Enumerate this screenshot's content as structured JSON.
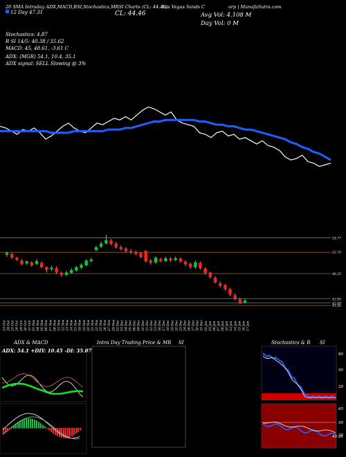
{
  "header": {
    "ticker_line": "(LVS) Las Vegas Sands Corp | MunafaSutra.com",
    "legend_line1": "20 SMA Intraday ADX,MACD,RSI,Stochastics,MRSI Charts (CL: 44.46)",
    "legend_line2": "12 Day  47.31",
    "close_label": "CL: 44.46",
    "avg_vol": "Avg Vol: 4.108  M",
    "day_vol": "Day Vol: 0  M",
    "company": "Las Vegas Sands C",
    "site": "orp | MunafaSutra.com"
  },
  "indicators": {
    "stoch": "Stochastics: 4.87",
    "rsi": "R                    SI 14/5: 40.38  /  35.62",
    "macd": "MACD: 45,  48.61,  -3.61 C",
    "adx": "ADX:                      (MGR) 54.1,  10.4,  35.1",
    "adx_signal": "ADX  signal: SELL  Slowing @ 3%"
  },
  "price_levels": [
    "55.77",
    "52.75",
    "48.25",
    "42.95",
    "42.09",
    "41.56"
  ],
  "dates": [
    "23 Oct",
    "24 Oct",
    "25 Oct",
    "28 Oct",
    "29 Oct",
    "30 Oct",
    "31 Oct",
    "01 Nov",
    "04 Nov",
    "05 Nov",
    "06 Nov",
    "07 Nov",
    "08 Nov",
    "11 Nov",
    "12 Nov",
    "13 Nov",
    "14 Nov",
    "15 Nov",
    "18 Nov",
    "19 Nov",
    "20 Nov",
    "21 Nov",
    "22 Nov",
    "25 Nov",
    "26 Nov",
    "27 Nov",
    "29 Nov",
    "02 Dec",
    "03 Dec",
    "04 Dec",
    "05 Dec",
    "06 Dec",
    "09 Dec",
    "10 Dec",
    "11 Dec",
    "12 Dec",
    "13 Dec",
    "16 Dec",
    "17 Dec",
    "18 Dec",
    "19 Dec",
    "20 Dec",
    "23 Dec",
    "24 Dec",
    "26 Dec",
    "27 Dec",
    "30 Dec",
    "31 Dec",
    "02 Jan",
    "03 Jan",
    "06 Jan",
    "07 Jan",
    "08 Jan",
    "10 Jan",
    "13 Jan",
    "14 Jan",
    "15 Jan",
    "16 Jan",
    "17 Jan"
  ],
  "panels": {
    "adx_title": "ADX  & MACD",
    "adx_values": "ADX: 54.1  +DIY: 10.45  -DI: 35.07",
    "intraday_title": "Intra  Day Trading Price  & MR",
    "intraday_si": "SI",
    "stoch_title": "Stochastics & R",
    "stoch_si": "SI",
    "stoch_levels": [
      "80",
      "50",
      "20"
    ],
    "rsi_levels": [
      "65",
      "50",
      "35"
    ],
    "rsi_value": "40.38"
  },
  "colors": {
    "up": "#00cc33",
    "down": "#ff2020",
    "sma": "#1f5fff",
    "grid": "#b36a1a"
  },
  "chart_data": [
    {
      "type": "line",
      "title": "Price vs 20 SMA (top strip)",
      "series": [
        {
          "name": "price",
          "values": [
            56,
            55,
            53,
            51,
            54,
            53,
            55,
            52,
            48,
            50,
            53,
            56,
            58,
            55,
            53,
            52,
            55,
            58,
            57,
            59,
            61,
            60,
            62,
            60,
            63,
            66,
            68,
            67,
            65,
            63,
            65,
            60,
            58,
            57,
            56,
            52,
            51,
            49,
            52,
            53,
            50,
            51,
            48,
            49,
            47,
            45,
            47,
            44,
            43,
            41,
            37,
            35,
            36,
            38,
            34,
            33,
            31,
            32,
            33
          ]
        },
        {
          "name": "20 SMA",
          "values": [
            53,
            53,
            53,
            53,
            53,
            53,
            53,
            53,
            53,
            52,
            52,
            52,
            52,
            53,
            53,
            53,
            53,
            53,
            53,
            54,
            54,
            54,
            55,
            55,
            56,
            57,
            58,
            59,
            59,
            60,
            60,
            60,
            60,
            60,
            60,
            59,
            59,
            58,
            57,
            57,
            56,
            56,
            55,
            54,
            54,
            53,
            52,
            51,
            50,
            49,
            48,
            46,
            45,
            43,
            42,
            40,
            39,
            37,
            35
          ]
        }
      ]
    },
    {
      "type": "bar",
      "title": "Candles",
      "ylim": [
        41,
        57
      ],
      "candles": [
        {
          "o": 52.2,
          "c": 52.6,
          "h": 52.9,
          "l": 51.8
        },
        {
          "o": 52.4,
          "c": 51.6,
          "h": 52.6,
          "l": 51.3
        },
        {
          "o": 51.6,
          "c": 51.2,
          "h": 51.8,
          "l": 50.9
        },
        {
          "o": 51.0,
          "c": 50.3,
          "h": 51.3,
          "l": 50.0
        },
        {
          "o": 50.4,
          "c": 50.8,
          "h": 51.0,
          "l": 50.1
        },
        {
          "o": 50.6,
          "c": 50.0,
          "h": 50.9,
          "l": 49.7
        },
        {
          "o": 50.3,
          "c": 50.9,
          "h": 51.3,
          "l": 50.0
        },
        {
          "o": 50.5,
          "c": 49.6,
          "h": 50.8,
          "l": 49.4
        },
        {
          "o": 49.6,
          "c": 49.0,
          "h": 49.8,
          "l": 48.5
        },
        {
          "o": 49.2,
          "c": 49.5,
          "h": 49.9,
          "l": 48.8
        },
        {
          "o": 49.4,
          "c": 48.5,
          "h": 49.8,
          "l": 48.2
        },
        {
          "o": 48.4,
          "c": 48.0,
          "h": 48.7,
          "l": 47.6
        },
        {
          "o": 48.0,
          "c": 48.5,
          "h": 48.9,
          "l": 47.7
        },
        {
          "o": 48.4,
          "c": 49.0,
          "h": 49.4,
          "l": 48.2
        },
        {
          "o": 48.9,
          "c": 49.6,
          "h": 49.9,
          "l": 48.7
        },
        {
          "o": 49.5,
          "c": 50.1,
          "h": 50.4,
          "l": 49.3
        },
        {
          "o": 50.0,
          "c": 51.0,
          "h": 51.3,
          "l": 49.8
        },
        {
          "o": 50.9,
          "c": 51.2,
          "h": 51.6,
          "l": 50.6
        },
        {
          "o": 53.2,
          "c": 53.8,
          "h": 54.1,
          "l": 53.0
        },
        {
          "o": 53.9,
          "c": 54.6,
          "h": 55.0,
          "l": 53.6
        },
        {
          "o": 54.6,
          "c": 55.3,
          "h": 56.4,
          "l": 54.4
        },
        {
          "o": 55.2,
          "c": 54.5,
          "h": 55.5,
          "l": 54.2
        },
        {
          "o": 54.6,
          "c": 53.8,
          "h": 54.9,
          "l": 53.5
        },
        {
          "o": 53.8,
          "c": 53.4,
          "h": 54.2,
          "l": 53.1
        },
        {
          "o": 53.5,
          "c": 53.0,
          "h": 53.8,
          "l": 52.6
        },
        {
          "o": 53.0,
          "c": 52.8,
          "h": 53.4,
          "l": 52.3
        },
        {
          "o": 52.8,
          "c": 52.4,
          "h": 53.1,
          "l": 52.1
        },
        {
          "o": 52.5,
          "c": 51.8,
          "h": 52.8,
          "l": 51.5
        },
        {
          "o": 53.0,
          "c": 50.9,
          "h": 53.2,
          "l": 50.6
        },
        {
          "o": 51.0,
          "c": 50.5,
          "h": 51.3,
          "l": 50.1
        },
        {
          "o": 50.6,
          "c": 51.6,
          "h": 51.9,
          "l": 50.3
        },
        {
          "o": 51.3,
          "c": 50.9,
          "h": 51.6,
          "l": 50.6
        },
        {
          "o": 50.9,
          "c": 51.5,
          "h": 51.8,
          "l": 50.7
        },
        {
          "o": 51.4,
          "c": 51.0,
          "h": 51.7,
          "l": 50.7
        },
        {
          "o": 51.1,
          "c": 51.5,
          "h": 51.8,
          "l": 50.9
        },
        {
          "o": 51.4,
          "c": 50.8,
          "h": 51.7,
          "l": 50.5
        },
        {
          "o": 50.8,
          "c": 50.2,
          "h": 51.1,
          "l": 49.8
        },
        {
          "o": 50.3,
          "c": 49.6,
          "h": 50.6,
          "l": 49.2
        },
        {
          "o": 49.6,
          "c": 50.6,
          "h": 51.0,
          "l": 49.3
        },
        {
          "o": 50.5,
          "c": 49.4,
          "h": 50.8,
          "l": 49.1
        },
        {
          "o": 49.3,
          "c": 48.4,
          "h": 49.6,
          "l": 48.0
        },
        {
          "o": 48.5,
          "c": 47.5,
          "h": 48.7,
          "l": 47.2
        },
        {
          "o": 47.4,
          "c": 46.4,
          "h": 47.7,
          "l": 46.2
        },
        {
          "o": 46.2,
          "c": 45.7,
          "h": 46.6,
          "l": 45.3
        },
        {
          "o": 45.8,
          "c": 45.0,
          "h": 46.1,
          "l": 44.7
        },
        {
          "o": 45.0,
          "c": 43.9,
          "h": 45.3,
          "l": 43.5
        },
        {
          "o": 43.7,
          "c": 42.9,
          "h": 44.1,
          "l": 42.6
        },
        {
          "o": 42.8,
          "c": 42.1,
          "h": 43.2,
          "l": 41.8
        },
        {
          "o": 42.2,
          "c": 42.6,
          "h": 43.0,
          "l": 42.0
        }
      ]
    }
  ]
}
